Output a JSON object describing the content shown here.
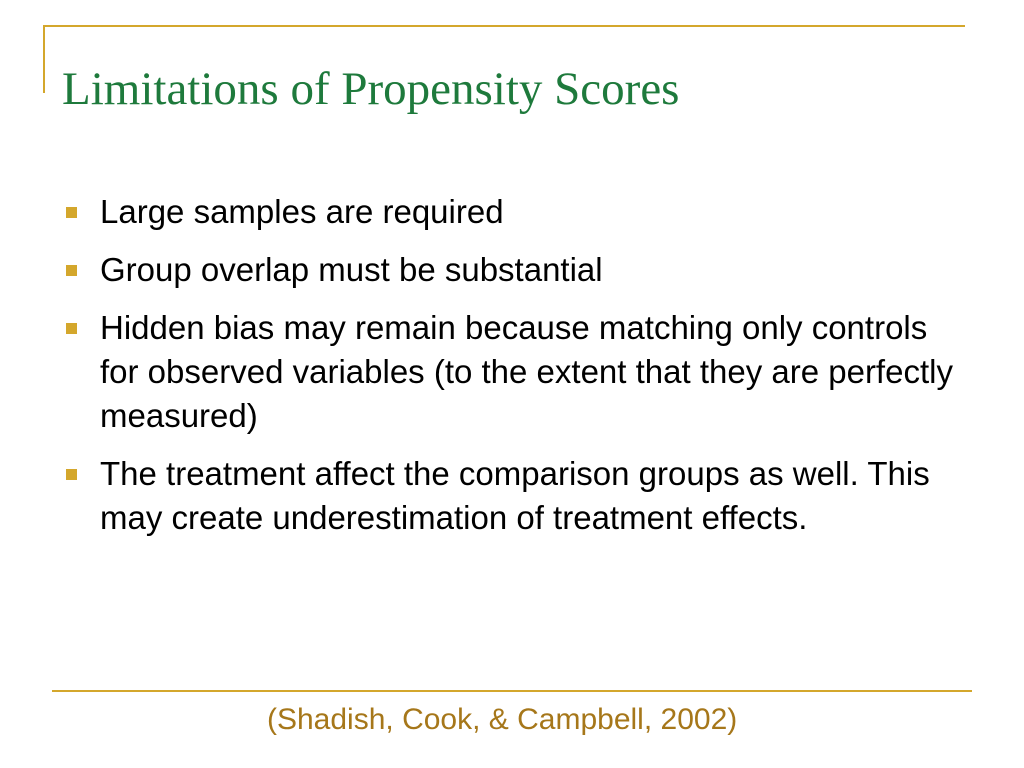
{
  "slide": {
    "title": "Limitations of Propensity Scores",
    "bullets": [
      {
        "text": "Large samples are required"
      },
      {
        "text": "Group overlap must be substantial"
      },
      {
        "text": "Hidden bias may remain because matching only controls for observed variables (to the extent that they are perfectly measured)"
      },
      {
        "text": "The treatment affect the comparison groups as well. This may create underestimation of treatment effects."
      }
    ],
    "citation": "(Shadish, Cook, & Campbell, 2002)"
  },
  "colors": {
    "title": "#1e7a3c",
    "accent": "#d4a72c",
    "citation": "#a6771a",
    "body_text": "#000000",
    "background": "#ffffff"
  },
  "icons": {
    "bullet": "square-bullet-icon"
  }
}
